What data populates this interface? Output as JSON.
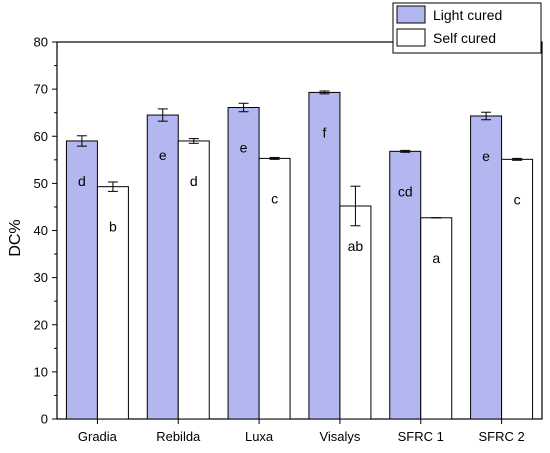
{
  "chart_data": {
    "type": "bar",
    "ylabel": "DC%",
    "xlabel": "",
    "ylim": [
      0,
      80
    ],
    "yticks": [
      0,
      10,
      20,
      30,
      40,
      50,
      60,
      70,
      80
    ],
    "categories": [
      "Gradia",
      "Rebilda",
      "Luxa",
      "Visalys",
      "SFRC 1",
      "SFRC 2"
    ],
    "legend_position": "top-right",
    "series": [
      {
        "name": "Light cured",
        "color": "#b3b7f0",
        "values": [
          59.0,
          64.5,
          66.1,
          69.3,
          56.8,
          64.3
        ],
        "errors": [
          1.1,
          1.3,
          0.9,
          0.3,
          0.2,
          0.8
        ],
        "letters": [
          "d",
          "e",
          "e",
          "f",
          "cd",
          "e"
        ]
      },
      {
        "name": "Self cured",
        "color": "#ffffff",
        "values": [
          49.3,
          59.0,
          55.3,
          45.2,
          42.7,
          55.1
        ],
        "errors": [
          1.0,
          0.5,
          0.2,
          4.2,
          0.0,
          0.2
        ],
        "letters": [
          "b",
          "d",
          "c",
          "ab",
          "a",
          "c"
        ]
      }
    ]
  }
}
